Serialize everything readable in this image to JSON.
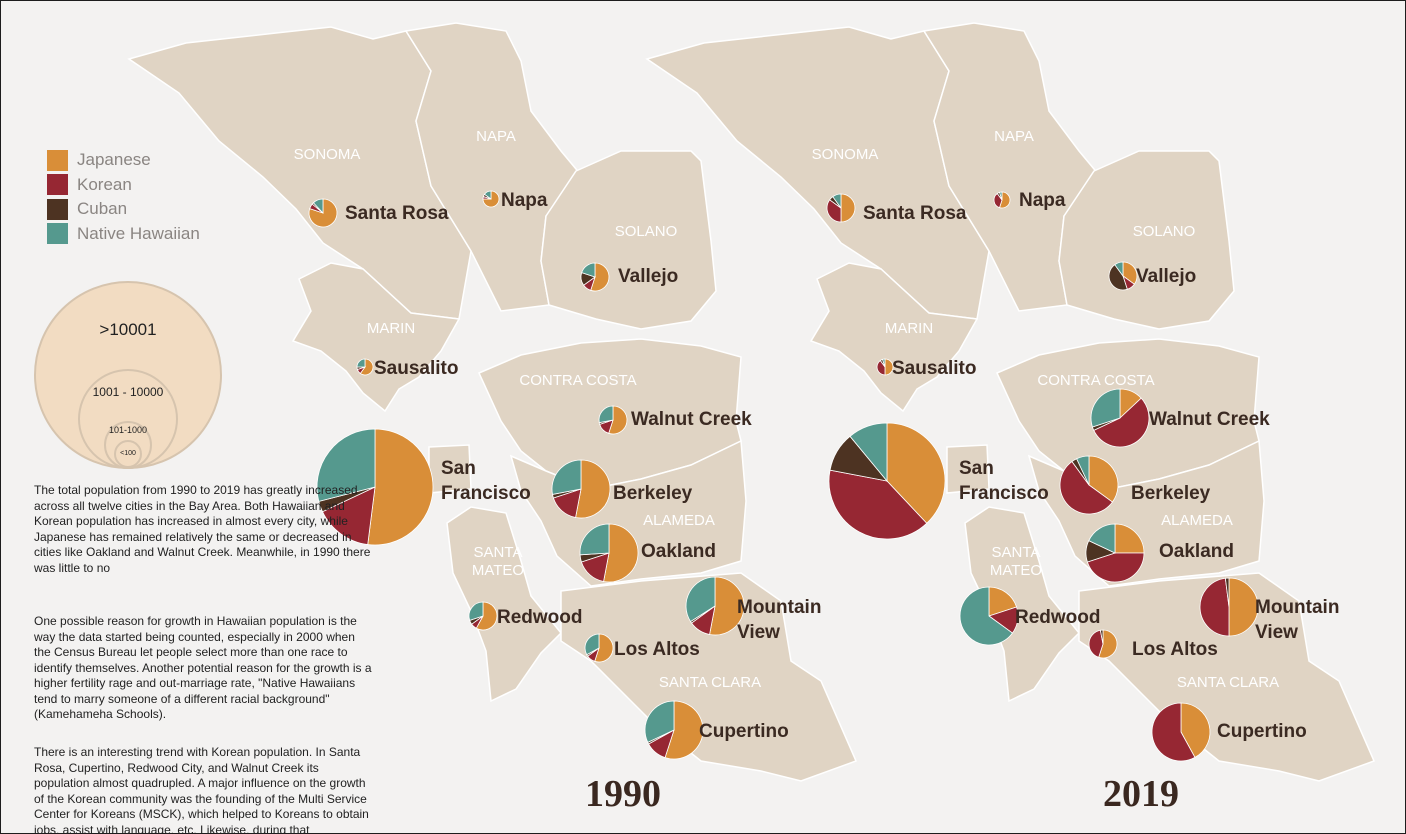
{
  "legend": {
    "categories": [
      {
        "label": "Japanese",
        "color": "#d98e38"
      },
      {
        "label": "Korean",
        "color": "#962733"
      },
      {
        "label": "Cuban",
        "color": "#4d3322"
      },
      {
        "label": "Native Hawaiian",
        "color": "#55998e"
      }
    ],
    "size_bins": [
      ">10001",
      "1001 - 10000",
      "101-1000",
      "<100"
    ]
  },
  "counties": [
    "SONOMA",
    "NAPA",
    "SOLANO",
    "MARIN",
    "CONTRA COSTA",
    "ALAMEDA",
    "SANTA MATEO",
    "SANTA CLARA"
  ],
  "maps": [
    {
      "year": "1990",
      "cities": [
        {
          "name": "Santa Rosa",
          "size_bin": "101-1000",
          "shares": [
            80,
            6,
            2,
            12
          ]
        },
        {
          "name": "Napa",
          "size_bin": "<100",
          "shares": [
            75,
            5,
            5,
            15
          ]
        },
        {
          "name": "Vallejo",
          "size_bin": "101-1000",
          "shares": [
            55,
            10,
            15,
            20
          ]
        },
        {
          "name": "Sausalito",
          "size_bin": "<100",
          "shares": [
            60,
            10,
            5,
            25
          ]
        },
        {
          "name": "Walnut Creek",
          "size_bin": "101-1000",
          "shares": [
            55,
            15,
            2,
            28
          ]
        },
        {
          "name": "San Francisco",
          "size_bin": ">10001",
          "shares": [
            52,
            16,
            3,
            29
          ]
        },
        {
          "name": "Berkeley",
          "size_bin": "1001 - 10000",
          "shares": [
            53,
            17,
            2,
            28
          ]
        },
        {
          "name": "Oakland",
          "size_bin": "1001 - 10000",
          "shares": [
            53,
            17,
            4,
            26
          ]
        },
        {
          "name": "Redwood",
          "size_bin": "101-1000",
          "shares": [
            58,
            7,
            5,
            30
          ]
        },
        {
          "name": "Mountain View",
          "size_bin": "1001 - 10000",
          "shares": [
            53,
            12,
            1,
            34
          ]
        },
        {
          "name": "Los Altos",
          "size_bin": "101-1000",
          "shares": [
            55,
            10,
            2,
            33
          ]
        },
        {
          "name": "Cupertino",
          "size_bin": "1001 - 10000",
          "shares": [
            55,
            12,
            1,
            32
          ]
        }
      ]
    },
    {
      "year": "2019",
      "cities": [
        {
          "name": "Santa Rosa",
          "size_bin": "101-1000",
          "shares": [
            50,
            35,
            5,
            10
          ]
        },
        {
          "name": "Napa",
          "size_bin": "<100",
          "shares": [
            55,
            35,
            5,
            5
          ]
        },
        {
          "name": "Vallejo",
          "size_bin": "101-1000",
          "shares": [
            35,
            10,
            45,
            10
          ]
        },
        {
          "name": "Sausalito",
          "size_bin": "<100",
          "shares": [
            50,
            40,
            5,
            5
          ]
        },
        {
          "name": "Walnut Creek",
          "size_bin": "1001 - 10000",
          "shares": [
            13,
            55,
            2,
            30
          ]
        },
        {
          "name": "San Francisco",
          "size_bin": ">10001",
          "shares": [
            38,
            40,
            11,
            11
          ]
        },
        {
          "name": "Berkeley",
          "size_bin": "1001 - 10000",
          "shares": [
            35,
            55,
            3,
            7
          ]
        },
        {
          "name": "Oakland",
          "size_bin": "1001 - 10000",
          "shares": [
            25,
            45,
            12,
            18
          ]
        },
        {
          "name": "Redwood",
          "size_bin": "1001 - 10000",
          "shares": [
            20,
            15,
            0,
            65
          ]
        },
        {
          "name": "Mountain View",
          "size_bin": "1001 - 10000",
          "shares": [
            50,
            48,
            2,
            0
          ]
        },
        {
          "name": "Los Altos",
          "size_bin": "101-1000",
          "shares": [
            55,
            42,
            3,
            0
          ]
        },
        {
          "name": "Cupertino",
          "size_bin": "1001 - 10000",
          "shares": [
            42,
            58,
            0,
            0
          ]
        }
      ]
    }
  ],
  "text": {
    "p1": "The total population from 1990 to 2019 has greatly increased across all twelve cities in the Bay Area. Both Hawaiian and Korean population has increased in almost every city, while Japanese has remained relatively the same or decreased in cities like Oakland and Walnut Creek. Meanwhile, in 1990 there was little to no",
    "p2": "One possible reason for growth in Hawaiian population is the way the data started being counted, especially in 2000 when the Census Bureau let people select more than one race to identify themselves. Another potential reason for the growth is a higher fertility rage and out-marriage rate, \"Native Hawaiians tend to marry someone of a different racial background\" (Kamehameha Schools).",
    "p3": "There is an interesting trend with Korean population. In Santa Rosa, Cupertino, Redwood City, and Walnut Creek its population almost quadrupled. A major influence on the growth of the Korean community was the founding of the Multi Service Center for Koreans (MSCK), which helped to Koreans to obtain jobs, assist with language, etc. Likewise, during that"
  }
}
